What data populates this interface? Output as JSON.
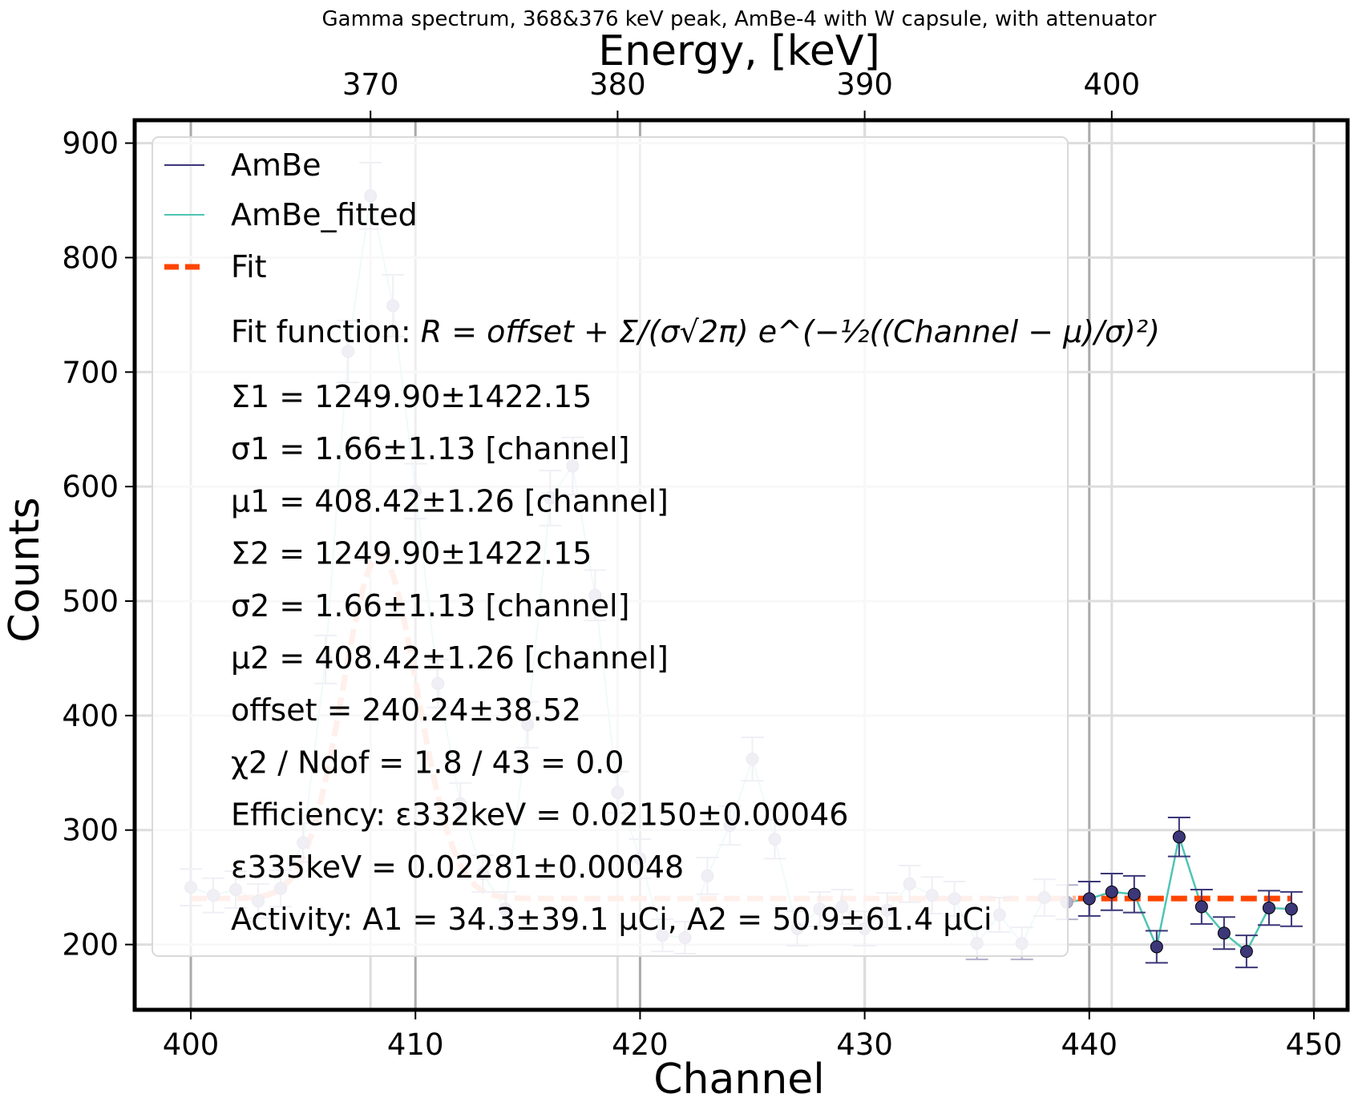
{
  "chart_data": {
    "type": "scatter",
    "title": "Gamma spectrum, 368&376 keV peak, AmBe-4 with W capsule, with attenuator",
    "xlabel": "Channel",
    "ylabel": "Counts",
    "x2label": "Energy, [keV]",
    "xlim": [
      397.5,
      451.5
    ],
    "ylim": [
      143,
      920
    ],
    "x_ticks": [
      400,
      410,
      420,
      430,
      440,
      450
    ],
    "y_ticks": [
      200,
      300,
      400,
      500,
      600,
      700,
      800,
      900
    ],
    "x2_ticks": [
      {
        "label": "370",
        "channel": 408.0
      },
      {
        "label": "380",
        "channel": 419.0
      },
      {
        "label": "390",
        "channel": 430.0
      },
      {
        "label": "400",
        "channel": 441.0
      }
    ],
    "grid": true,
    "legend": "upper-left",
    "colors": {
      "ambe": "#3b3778",
      "ambe_faded": "#b3b1cb",
      "fitted": "#4fc4b5",
      "fitted_faded": "#b5e6e1",
      "fit": "#ff4500",
      "fit_faded": "#ffb499"
    },
    "series": [
      {
        "name": "AmBe",
        "x": [
          400,
          401,
          402,
          403,
          404,
          405,
          406,
          407,
          408,
          409,
          410,
          411,
          412,
          413,
          414,
          415,
          416,
          417,
          418,
          419,
          420,
          421,
          422,
          423,
          424,
          425,
          426,
          427,
          428,
          429,
          430,
          431,
          432,
          433,
          434,
          435,
          436,
          437,
          438,
          439,
          440,
          441,
          442,
          443,
          444,
          445,
          446,
          447,
          448,
          449
        ],
        "y": [
          250,
          243,
          248,
          238,
          249,
          289,
          449,
          718,
          854,
          758,
          596,
          428,
          323,
          262,
          231,
          392,
          590,
          618,
          505,
          333,
          275,
          208,
          206,
          260,
          304,
          362,
          292,
          214,
          231,
          233,
          214,
          230,
          253,
          243,
          240,
          201,
          226,
          201,
          241,
          237,
          240,
          246,
          244,
          198,
          294,
          233,
          210,
          194,
          232,
          231
        ],
        "yerr": [
          16,
          15,
          16,
          15,
          16,
          17,
          21,
          27,
          29,
          27,
          24,
          21,
          18,
          16,
          15,
          20,
          24,
          25,
          22,
          18,
          17,
          14,
          14,
          16,
          17,
          19,
          17,
          15,
          15,
          15,
          15,
          15,
          16,
          16,
          15,
          14,
          15,
          14,
          16,
          15,
          15,
          16,
          16,
          14,
          17,
          15,
          14,
          14,
          15,
          15
        ]
      },
      {
        "name": "AmBe_fitted",
        "x": [
          400,
          401,
          402,
          403,
          404,
          405,
          406,
          407,
          408,
          409,
          410,
          411,
          412,
          413,
          414,
          415,
          416,
          417,
          418,
          419,
          420,
          421,
          422,
          423,
          424,
          425,
          426,
          427,
          428,
          429,
          430,
          431,
          432,
          433,
          434,
          435,
          436,
          437,
          438,
          439,
          440,
          441,
          442,
          443,
          444,
          445,
          446,
          447,
          448,
          449
        ],
        "y": [
          250,
          243,
          248,
          238,
          249,
          289,
          449,
          718,
          854,
          758,
          596,
          428,
          323,
          262,
          231,
          392,
          590,
          618,
          505,
          333,
          275,
          208,
          206,
          260,
          304,
          362,
          292,
          214,
          231,
          233,
          214,
          230,
          253,
          243,
          240,
          201,
          226,
          201,
          241,
          237,
          240,
          246,
          244,
          198,
          294,
          233,
          210,
          194,
          232,
          231
        ]
      },
      {
        "name": "Fit",
        "offset": 240.24,
        "peaks": [
          {
            "mu": 408.42,
            "sigma": 1.66,
            "sum": 1249.9
          }
        ],
        "x_start": 400,
        "x_end": 449
      }
    ],
    "fit_region": {
      "x_start": 439.5,
      "x_end": 449
    }
  },
  "legend": {
    "entries": [
      "AmBe",
      "AmBe_fitted",
      "Fit"
    ],
    "fit_function_label": "Fit function: ",
    "fit_function_formula": "R = offset + Σ/(σ√2π) e^(−½((Channel − μ)/σ)²)",
    "params": [
      "Σ1 = 1249.90±1422.15",
      "σ1 = 1.66±1.13 [channel]",
      "μ1 = 408.42±1.26 [channel]",
      "Σ2 = 1249.90±1422.15",
      "σ2 = 1.66±1.13 [channel]",
      "μ2 = 408.42±1.26 [channel]",
      "offset = 240.24±38.52",
      "χ2 / Ndof = 1.8 / 43 = 0.0",
      "Efficiency: ε332keV = 0.02150±0.00046",
      "ε335keV = 0.02281±0.00048",
      "Activity: A1 = 34.3±39.1 μCi, A2 = 50.9±61.4 μCi"
    ]
  }
}
